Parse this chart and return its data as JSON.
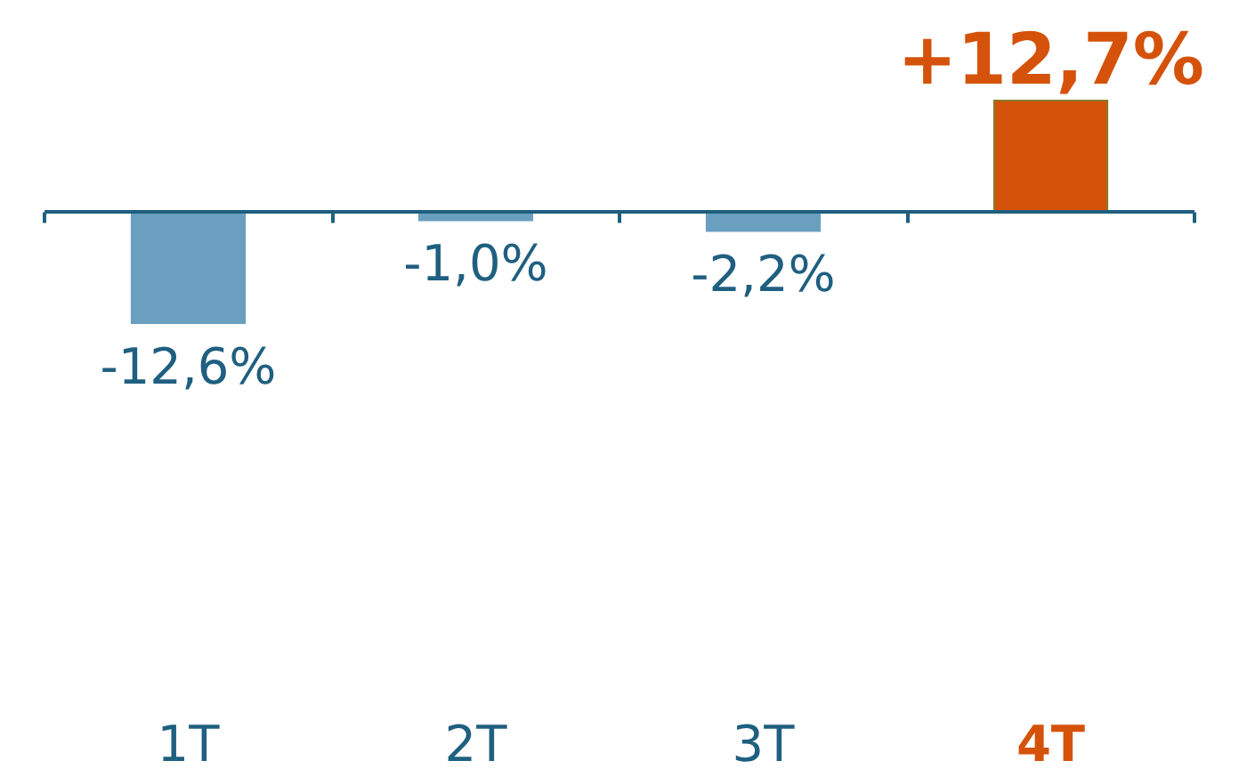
{
  "chart_data": {
    "type": "bar",
    "categories": [
      "1T",
      "2T",
      "3T",
      "4T"
    ],
    "values": [
      -12.6,
      -1.0,
      -2.2,
      12.7
    ],
    "colors": [
      "#6a9fbf",
      "#6a9fbf",
      "#6a9fbf",
      "#d5520a"
    ],
    "value_labels": [
      "-12,6%",
      "-1,0%",
      "-2,2%",
      "+12,7%"
    ],
    "ref_lines": [
      {
        "axis": "y",
        "value": 0,
        "color": "#1f5f80",
        "line_style": "solid"
      }
    ]
  }
}
